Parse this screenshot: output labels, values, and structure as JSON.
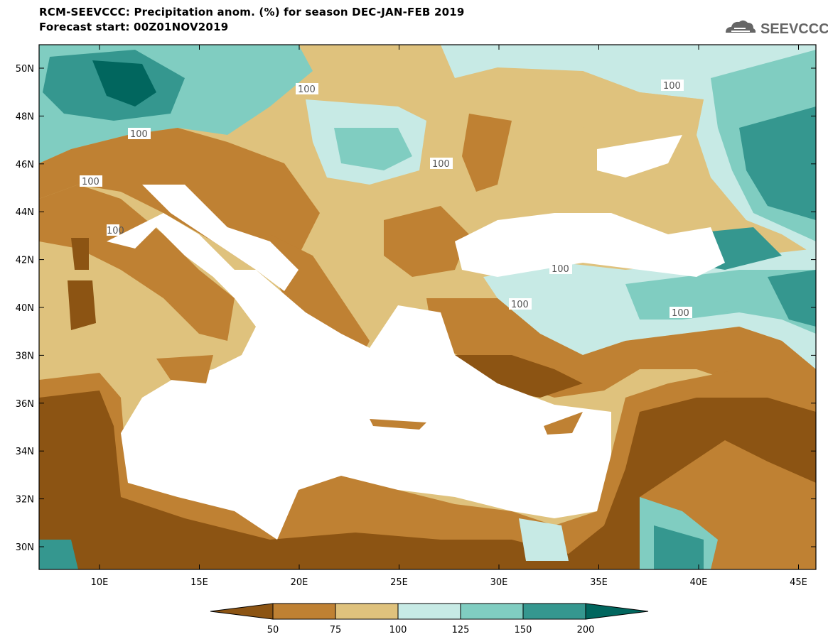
{
  "header": {
    "title_line1": "RCM-SEEVCCC: Precipitation anom. (%) for season DEC-JAN-FEB 2019",
    "title_line2": "Forecast start: 00Z01NOV2019"
  },
  "logo": {
    "text": "SEEVCCC",
    "icon": "cloud-icon"
  },
  "map": {
    "lat_ticks": [
      "50N",
      "48N",
      "46N",
      "44N",
      "42N",
      "40N",
      "38N",
      "36N",
      "34N",
      "32N",
      "30N"
    ],
    "lon_ticks": [
      "10E",
      "15E",
      "20E",
      "25E",
      "30E",
      "35E",
      "40E",
      "45E"
    ],
    "contour_labels": [
      "100",
      "100",
      "100",
      "100",
      "100",
      "100",
      "100",
      "100",
      "100"
    ]
  },
  "legend": {
    "ticks": [
      "50",
      "75",
      "100",
      "125",
      "150",
      "200"
    ],
    "colors": [
      "#8c5413",
      "#bf8133",
      "#dfc27d",
      "#c7eae5",
      "#80cdc1",
      "#35978f",
      "#01665e"
    ]
  }
}
